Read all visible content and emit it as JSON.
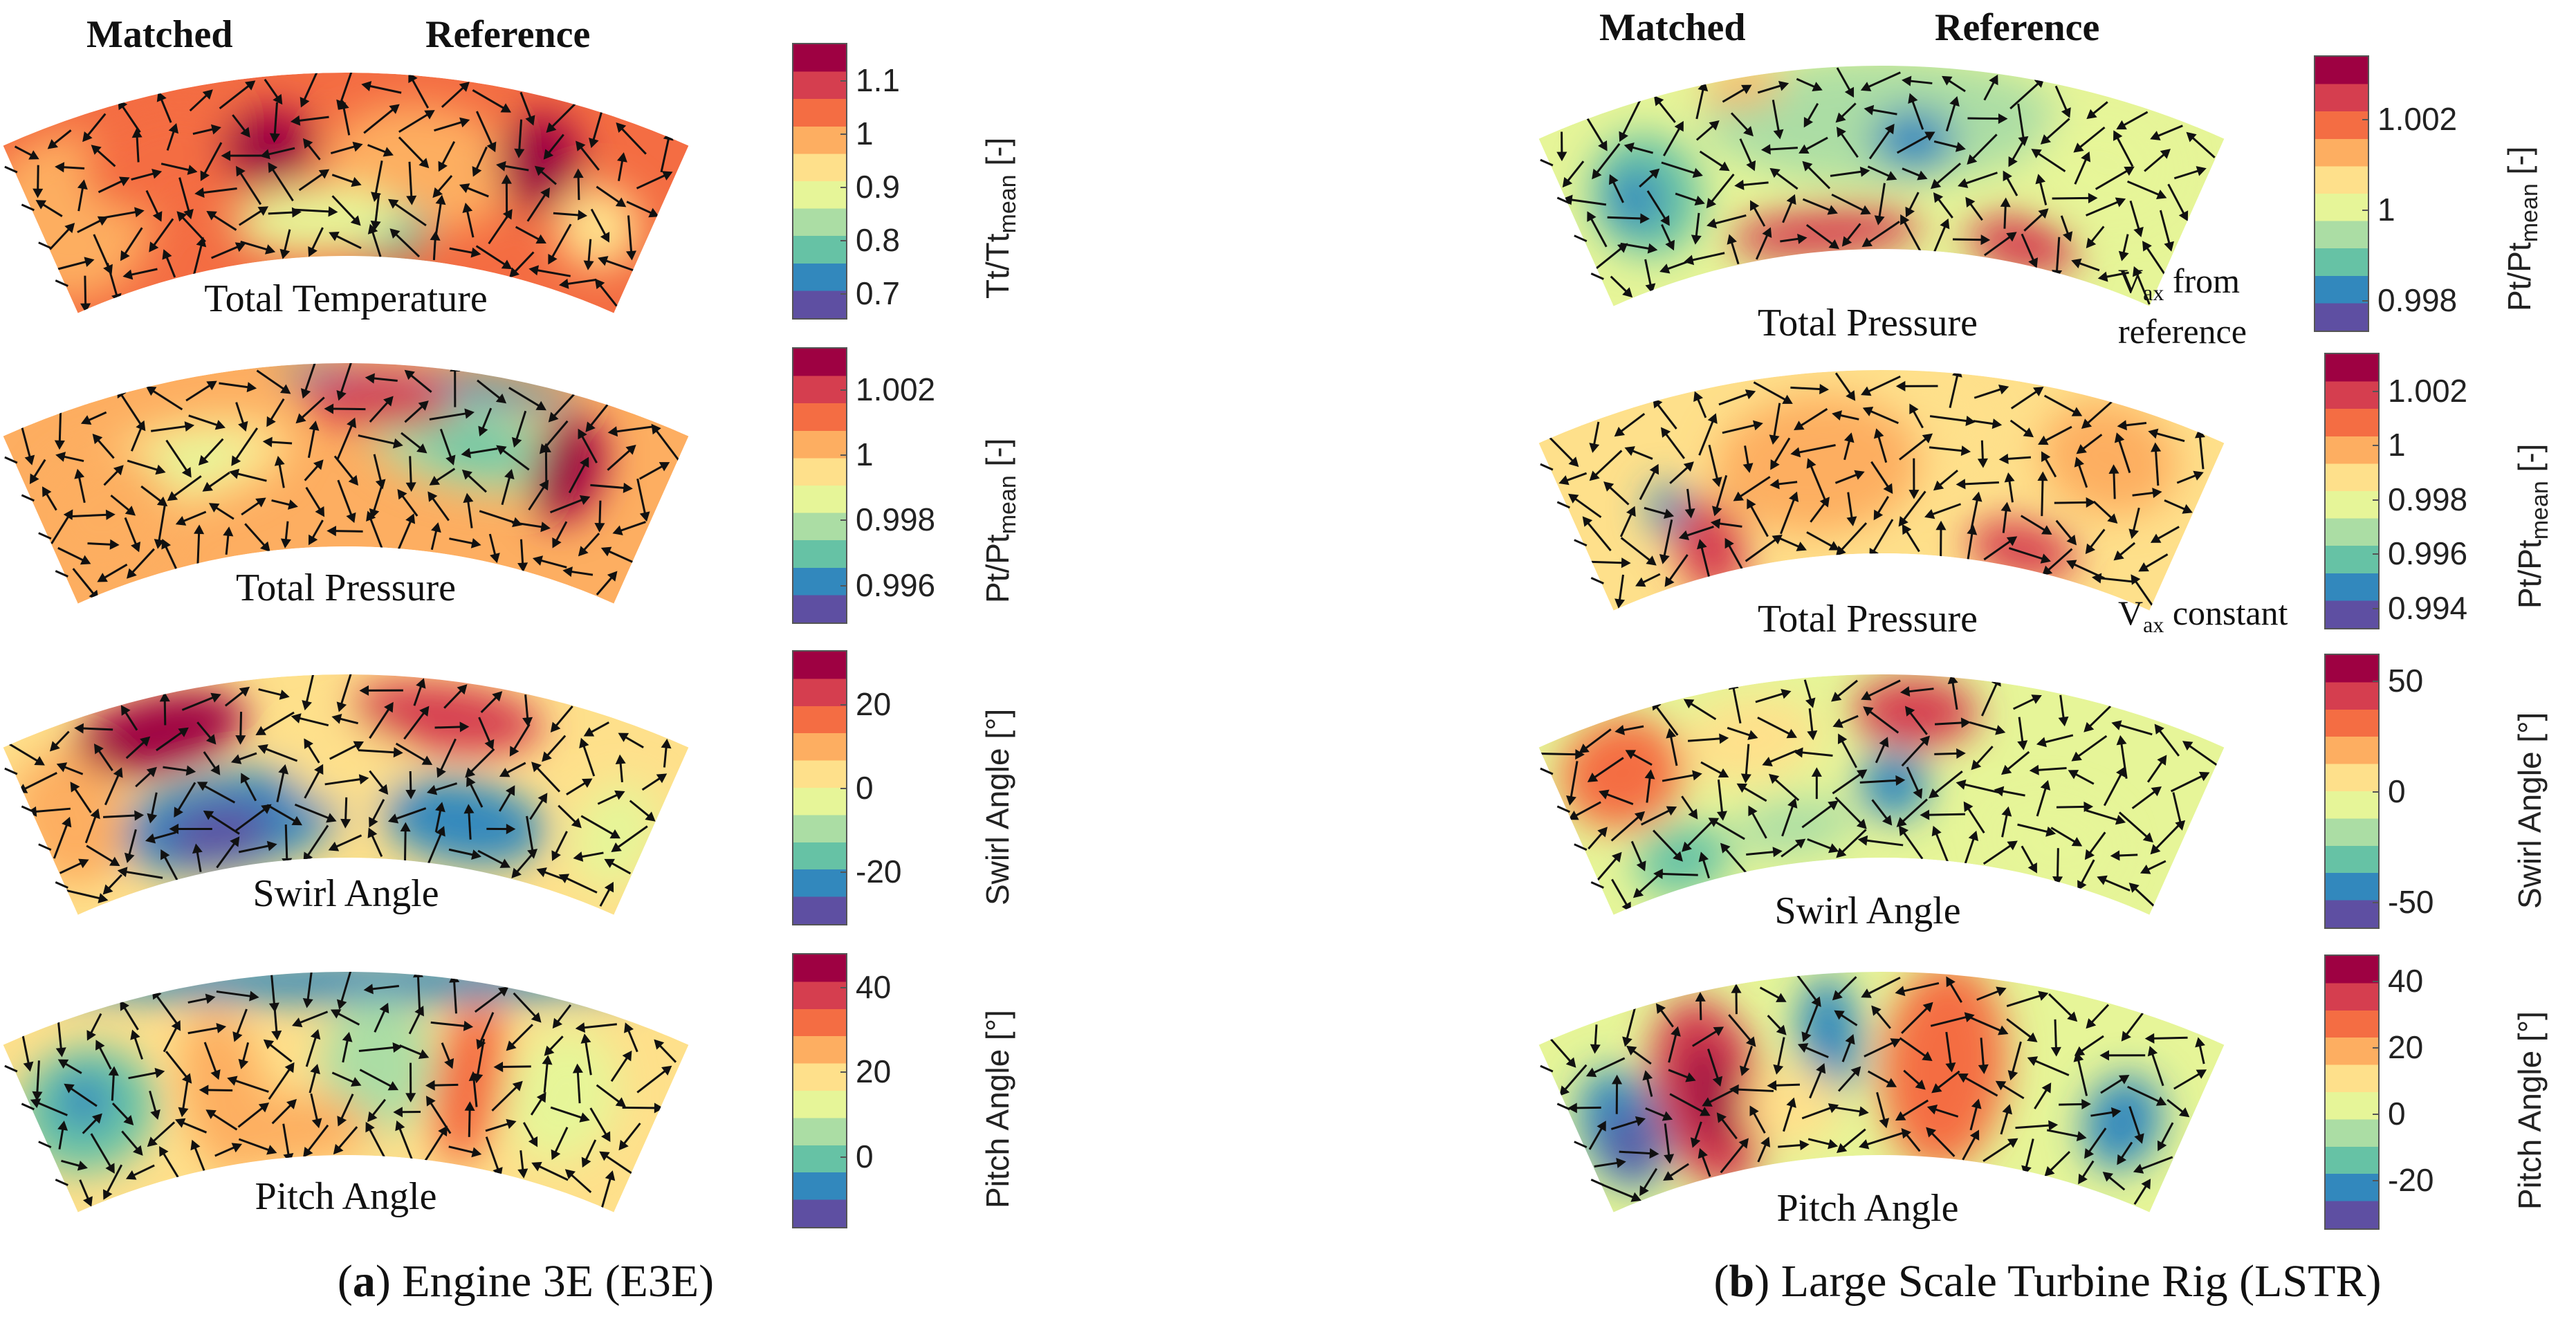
{
  "left": {
    "header_matched": "Matched",
    "header_reference": "Reference",
    "caption_letter": "a",
    "caption_text": "Engine 3E (E3E)",
    "panels": [
      {
        "label": "Total Temperature",
        "colorbar": {
          "label": "Tt/Tt",
          "label_sub": "mean",
          "label_suffix": " [-]",
          "ticks": [
            "1.1",
            "1",
            "0.9",
            "0.8",
            "0.7"
          ],
          "range": [
            0.65,
            1.17
          ],
          "tick_values": [
            1.1,
            1.0,
            0.9,
            0.8,
            0.7
          ]
        }
      },
      {
        "label": "Total Pressure",
        "colorbar": {
          "label": "Pt/Pt",
          "label_sub": "mean",
          "label_suffix": " [-]",
          "ticks": [
            "1.002",
            "1",
            "0.998",
            "0.996"
          ],
          "range": [
            0.9948,
            1.0033
          ],
          "tick_values": [
            1.002,
            1.0,
            0.998,
            0.996
          ]
        }
      },
      {
        "label": "Swirl Angle",
        "colorbar": {
          "label": "Swirl Angle [°]",
          "label_sub": "",
          "label_suffix": "",
          "ticks": [
            "20",
            "0",
            "-20"
          ],
          "range": [
            -33,
            33
          ],
          "tick_values": [
            20,
            0,
            -20
          ]
        }
      },
      {
        "label": "Pitch Angle",
        "colorbar": {
          "label": "Pitch Angle [°]",
          "label_sub": "",
          "label_suffix": "",
          "ticks": [
            "40",
            "20",
            "0"
          ],
          "range": [
            -17,
            48
          ],
          "tick_values": [
            40,
            20,
            0
          ]
        }
      }
    ]
  },
  "right": {
    "header_matched": "Matched",
    "header_reference": "Reference",
    "caption_letter": "b",
    "caption_text": "Large Scale Turbine Rig (LSTR)",
    "panels": [
      {
        "label": "Total Pressure",
        "note_main": "V",
        "note_sub": "ax",
        "note_rest": " from",
        "note_line2": "reference",
        "colorbar": {
          "label": "Pt/Pt",
          "label_sub": "mean",
          "label_suffix": " [-]",
          "ticks": [
            "1.002",
            "1",
            "0.998"
          ],
          "range": [
            0.9973,
            1.0034
          ],
          "tick_values": [
            1.002,
            1.0,
            0.998
          ]
        }
      },
      {
        "label": "Total Pressure",
        "note_main": "V",
        "note_sub": "ax",
        "note_rest": " constant",
        "note_line2": "",
        "colorbar": {
          "label": "Pt/Pt",
          "label_sub": "mean",
          "label_suffix": " [-]",
          "ticks": [
            "1.002",
            "1",
            "0.998",
            "0.996",
            "0.994"
          ],
          "range": [
            0.9932,
            1.0034
          ],
          "tick_values": [
            1.002,
            1.0,
            0.998,
            0.996,
            0.994
          ]
        }
      },
      {
        "label": "Swirl Angle",
        "colorbar": {
          "label": "Swirl Angle [°]",
          "label_sub": "",
          "label_suffix": "",
          "ticks": [
            "50",
            "0",
            "-50"
          ],
          "range": [
            -62,
            62
          ],
          "tick_values": [
            50,
            0,
            -50
          ]
        }
      },
      {
        "label": "Pitch Angle",
        "colorbar": {
          "label": "Pitch Angle [°]",
          "label_sub": "",
          "label_suffix": "",
          "ticks": [
            "40",
            "20",
            "0",
            "-20"
          ],
          "range": [
            -35,
            48
          ],
          "tick_values": [
            40,
            20,
            0,
            -20
          ]
        }
      }
    ]
  },
  "colors": {
    "colormap": [
      "#5e4fa2",
      "#3288bd",
      "#66c2a5",
      "#abdda4",
      "#e6f598",
      "#fee08b",
      "#fdae61",
      "#f46d43",
      "#d53e4f",
      "#9e0142"
    ],
    "arrow": "#111111"
  }
}
